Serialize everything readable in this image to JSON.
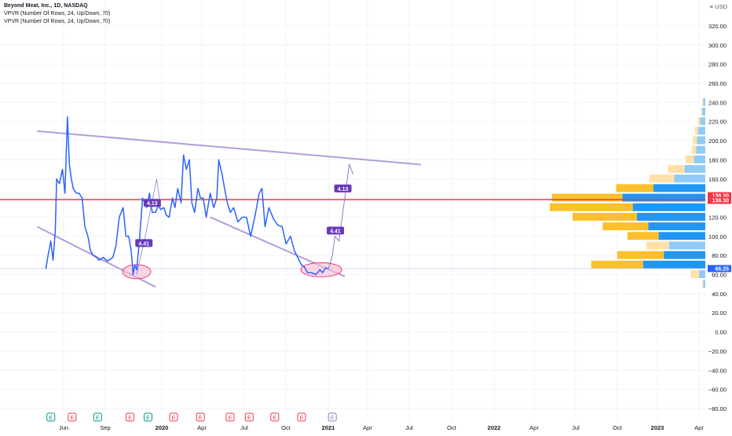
{
  "header": {
    "symbol": "Beyond Meat, Inc., 1D, NASDAQ",
    "indicators": [
      "VPVR (Number Of Rows, 24, Up/Down, 70)",
      "VPVR (Number Of Rows, 24, Up/Down, 70)"
    ],
    "currency": "USD"
  },
  "colors": {
    "price_line": "#2962ff",
    "trendline": "#b39ddb",
    "horizontal": "#f23645",
    "projection": "#9575cd",
    "vol_up_light": "#90caf9",
    "vol_up": "#2196f3",
    "vol_down_light": "#ffe0a6",
    "vol_down": "#fbc02d",
    "label_purple": "#673ab7",
    "highlight": "#f8bbd0",
    "grid": "#f0f3fa"
  },
  "chart_data": {
    "type": "line",
    "title": "Beyond Meat, Inc., 1D, NASDAQ",
    "xlabel": "",
    "ylabel": "",
    "grid": true,
    "ylim": [
      -90,
      330
    ],
    "x_ticks": [
      "Jun",
      "Sep",
      "2020",
      "Apr",
      "Jul",
      "Oct",
      "2021",
      "Apr",
      "Jul",
      "Oct",
      "2022",
      "Apr",
      "Jul",
      "Oct",
      "2023",
      "Apr"
    ],
    "y_ticks": [
      "320.00",
      "300.00",
      "280.00",
      "260.00",
      "240.00",
      "220.00",
      "200.00",
      "180.00",
      "160.00",
      "140.00",
      "120.00",
      "100.00",
      "80.00",
      "60.00",
      "40.00",
      "20.00",
      "0.00",
      "−20.00",
      "−40.00",
      "−60.00",
      "−80.00"
    ],
    "series": [
      {
        "x": [
          "2019-05-02",
          "2019-05-10",
          "2019-05-20",
          "2019-05-28",
          "2019-06-05",
          "2019-06-10",
          "2019-06-20",
          "2019-07-01",
          "2019-07-10",
          "2019-07-19",
          "2019-07-26",
          "2019-08-02",
          "2019-08-09",
          "2019-08-20",
          "2019-08-30",
          "2019-09-10",
          "2019-09-20",
          "2019-10-01",
          "2019-10-10",
          "2019-10-20",
          "2019-11-01",
          "2019-11-10",
          "2019-11-25",
          "2019-12-10",
          "2019-12-30",
          "2020-01-10",
          "2020-01-22",
          "2020-02-05",
          "2020-02-15",
          "2020-02-25",
          "2020-03-05",
          "2020-03-12",
          "2020-03-18",
          "2020-03-25",
          "2020-04-05",
          "2020-04-15",
          "2020-04-30",
          "2020-05-10",
          "2020-05-20",
          "2020-06-01",
          "2020-06-10",
          "2020-06-20",
          "2020-07-01",
          "2020-07-10",
          "2020-07-20",
          "2020-08-01",
          "2020-08-10",
          "2020-08-20",
          "2020-09-01",
          "2020-09-10",
          "2020-09-20",
          "2020-10-01",
          "2020-10-10",
          "2020-10-20",
          "2020-11-01",
          "2020-11-10",
          "2020-11-20",
          "2020-12-01",
          "2020-12-15",
          "2020-12-28",
          "2021-01-08",
          "2021-01-15",
          "2021-01-27",
          "2021-02-05",
          "2021-02-15",
          "2021-02-26",
          "2021-03-10",
          "2021-03-25",
          "2021-04-10",
          "2021-04-25",
          "2021-05-10",
          "2021-05-25",
          "2021-06-10",
          "2021-06-20",
          "2021-07-01",
          "2021-07-15",
          "2021-08-01",
          "2021-08-15",
          "2021-09-01",
          "2021-09-15",
          "2021-10-01",
          "2021-10-15",
          "2021-11-01",
          "2021-11-10",
          "2021-11-20",
          "2021-12-01",
          "2021-12-15",
          "2022-01-01",
          "2022-01-15",
          "2022-01-25",
          "2022-02-05",
          "2022-02-15"
        ],
        "values": [
          66,
          80,
          95,
          75,
          105,
          160,
          155,
          170,
          145,
          225,
          175,
          160,
          150,
          145,
          145,
          140,
          110,
          100,
          85,
          80,
          78,
          75,
          78,
          74,
          78,
          90,
          120,
          130,
          100,
          100,
          85,
          60,
          70,
          65,
          100,
          140,
          130,
          145,
          125,
          125,
          132,
          128,
          130,
          122,
          120,
          140,
          130,
          150,
          135,
          185,
          170,
          180,
          135,
          125,
          150,
          140,
          140,
          120,
          145,
          130,
          140,
          180,
          165,
          150,
          135,
          125,
          130,
          115,
          120,
          120,
          100,
          120,
          145,
          150,
          110,
          130,
          118,
          112,
          110,
          92,
          100,
          85,
          75,
          70,
          68,
          62,
          62,
          60,
          65,
          62,
          67,
          66
        ]
      }
    ],
    "projection": {
      "x": [
        "2022-02-15",
        "2022-03-01",
        "2022-03-10",
        "2022-03-25",
        "2022-04-10",
        "2022-05-01",
        "2022-05-15"
      ],
      "values": [
        66,
        80,
        100,
        95,
        130,
        175,
        165
      ]
    },
    "labels": [
      "4.41",
      "4.13",
      "4.41",
      "4.13"
    ],
    "price_labels": [
      {
        "text": "138.30",
        "value": 138.3,
        "color": "#f23645"
      },
      {
        "text": "138.30",
        "value": 138.3,
        "color": "#f23645"
      },
      {
        "text": "66.25",
        "value": 66.25,
        "color": "#2962ff"
      }
    ],
    "horizontal_levels": [
      138.3,
      66.25
    ],
    "trendlines": [
      {
        "x": [
          "2019-04-01",
          "2023-01-15"
        ],
        "values": [
          210,
          175
        ]
      },
      {
        "x": [
          "2019-04-01",
          "2020-06-01"
        ],
        "values": [
          110,
          47
        ]
      },
      {
        "x": [
          "2020-12-15",
          "2022-04-15"
        ],
        "values": [
          120,
          58
        ]
      }
    ],
    "volume_profile": [
      {
        "price": 240,
        "up": 2,
        "down": 1
      },
      {
        "price": 230,
        "up": 3,
        "down": 1
      },
      {
        "price": 220,
        "up": 5,
        "down": 2
      },
      {
        "price": 210,
        "up": 7,
        "down": 3
      },
      {
        "price": 200,
        "up": 8,
        "down": 4
      },
      {
        "price": 190,
        "up": 9,
        "down": 4
      },
      {
        "price": 180,
        "up": 11,
        "down": 8
      },
      {
        "price": 170,
        "up": 20,
        "down": 16
      },
      {
        "price": 160,
        "up": 30,
        "down": 24
      },
      {
        "price": 150,
        "up": 50,
        "down": 36
      },
      {
        "price": 140,
        "up": 80,
        "down": 68
      },
      {
        "price": 130,
        "up": 70,
        "down": 80
      },
      {
        "price": 120,
        "up": 66,
        "down": 62
      },
      {
        "price": 110,
        "up": 55,
        "down": 44
      },
      {
        "price": 100,
        "up": 45,
        "down": 30
      },
      {
        "price": 90,
        "up": 35,
        "down": 22
      },
      {
        "price": 80,
        "up": 40,
        "down": 45
      },
      {
        "price": 70,
        "up": 60,
        "down": 50
      },
      {
        "price": 60,
        "up": 6,
        "down": 8
      },
      {
        "price": 50,
        "up": 2,
        "down": 1
      }
    ],
    "event_markers": [
      {
        "x": "2019-05-20",
        "type": "E",
        "color": "#009688"
      },
      {
        "x": "2019-08-05",
        "type": "E",
        "color": "#f23645"
      },
      {
        "x": "2019-11-05",
        "type": "E",
        "color": "#009688"
      },
      {
        "x": "2020-03-01",
        "type": "E",
        "color": "#f23645"
      },
      {
        "x": "2020-05-05",
        "type": "E",
        "color": "#009688"
      },
      {
        "x": "2020-08-05",
        "type": "E",
        "color": "#f23645"
      },
      {
        "x": "2020-11-10",
        "type": "E",
        "color": "#f23645"
      },
      {
        "x": "2021-02-25",
        "type": "E",
        "color": "#f23645"
      },
      {
        "x": "2021-05-05",
        "type": "E",
        "color": "#f23645"
      },
      {
        "x": "2021-08-05",
        "type": "E",
        "color": "#f23645"
      },
      {
        "x": "2021-11-10",
        "type": "E",
        "color": "#f23645"
      },
      {
        "x": "2022-03-01",
        "type": "E",
        "color": "#9575cd"
      }
    ]
  }
}
